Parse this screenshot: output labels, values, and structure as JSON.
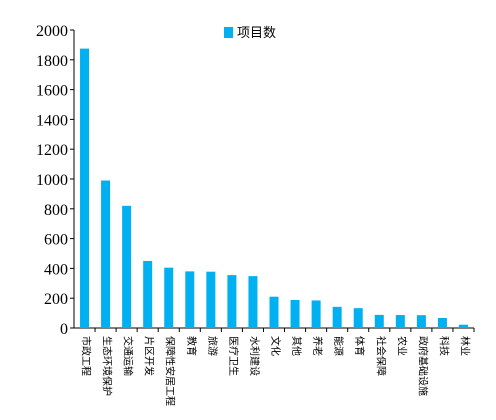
{
  "chart_data": {
    "type": "bar",
    "categories": [
      "市政工程",
      "生态环境保护",
      "交通运输",
      "片区开发",
      "保障性安居工程",
      "教育",
      "旅游",
      "医疗卫生",
      "水利建设",
      "文化",
      "其他",
      "养老",
      "能源",
      "体育",
      "社会保障",
      "农业",
      "政府基础设施",
      "科技",
      "林业"
    ],
    "series": [
      {
        "name": "项目数",
        "values": [
          1875,
          990,
          820,
          450,
          405,
          380,
          378,
          355,
          348,
          210,
          188,
          185,
          142,
          133,
          88,
          87,
          86,
          67,
          22
        ]
      }
    ],
    "yticks": [
      0,
      200,
      400,
      600,
      800,
      1000,
      1200,
      1400,
      1600,
      1800,
      2000
    ],
    "ylim": [
      0,
      2000
    ],
    "grid": false,
    "legend_position": "top-center",
    "colors": {
      "bar": "#00B0F0",
      "axis": "#000000"
    }
  }
}
